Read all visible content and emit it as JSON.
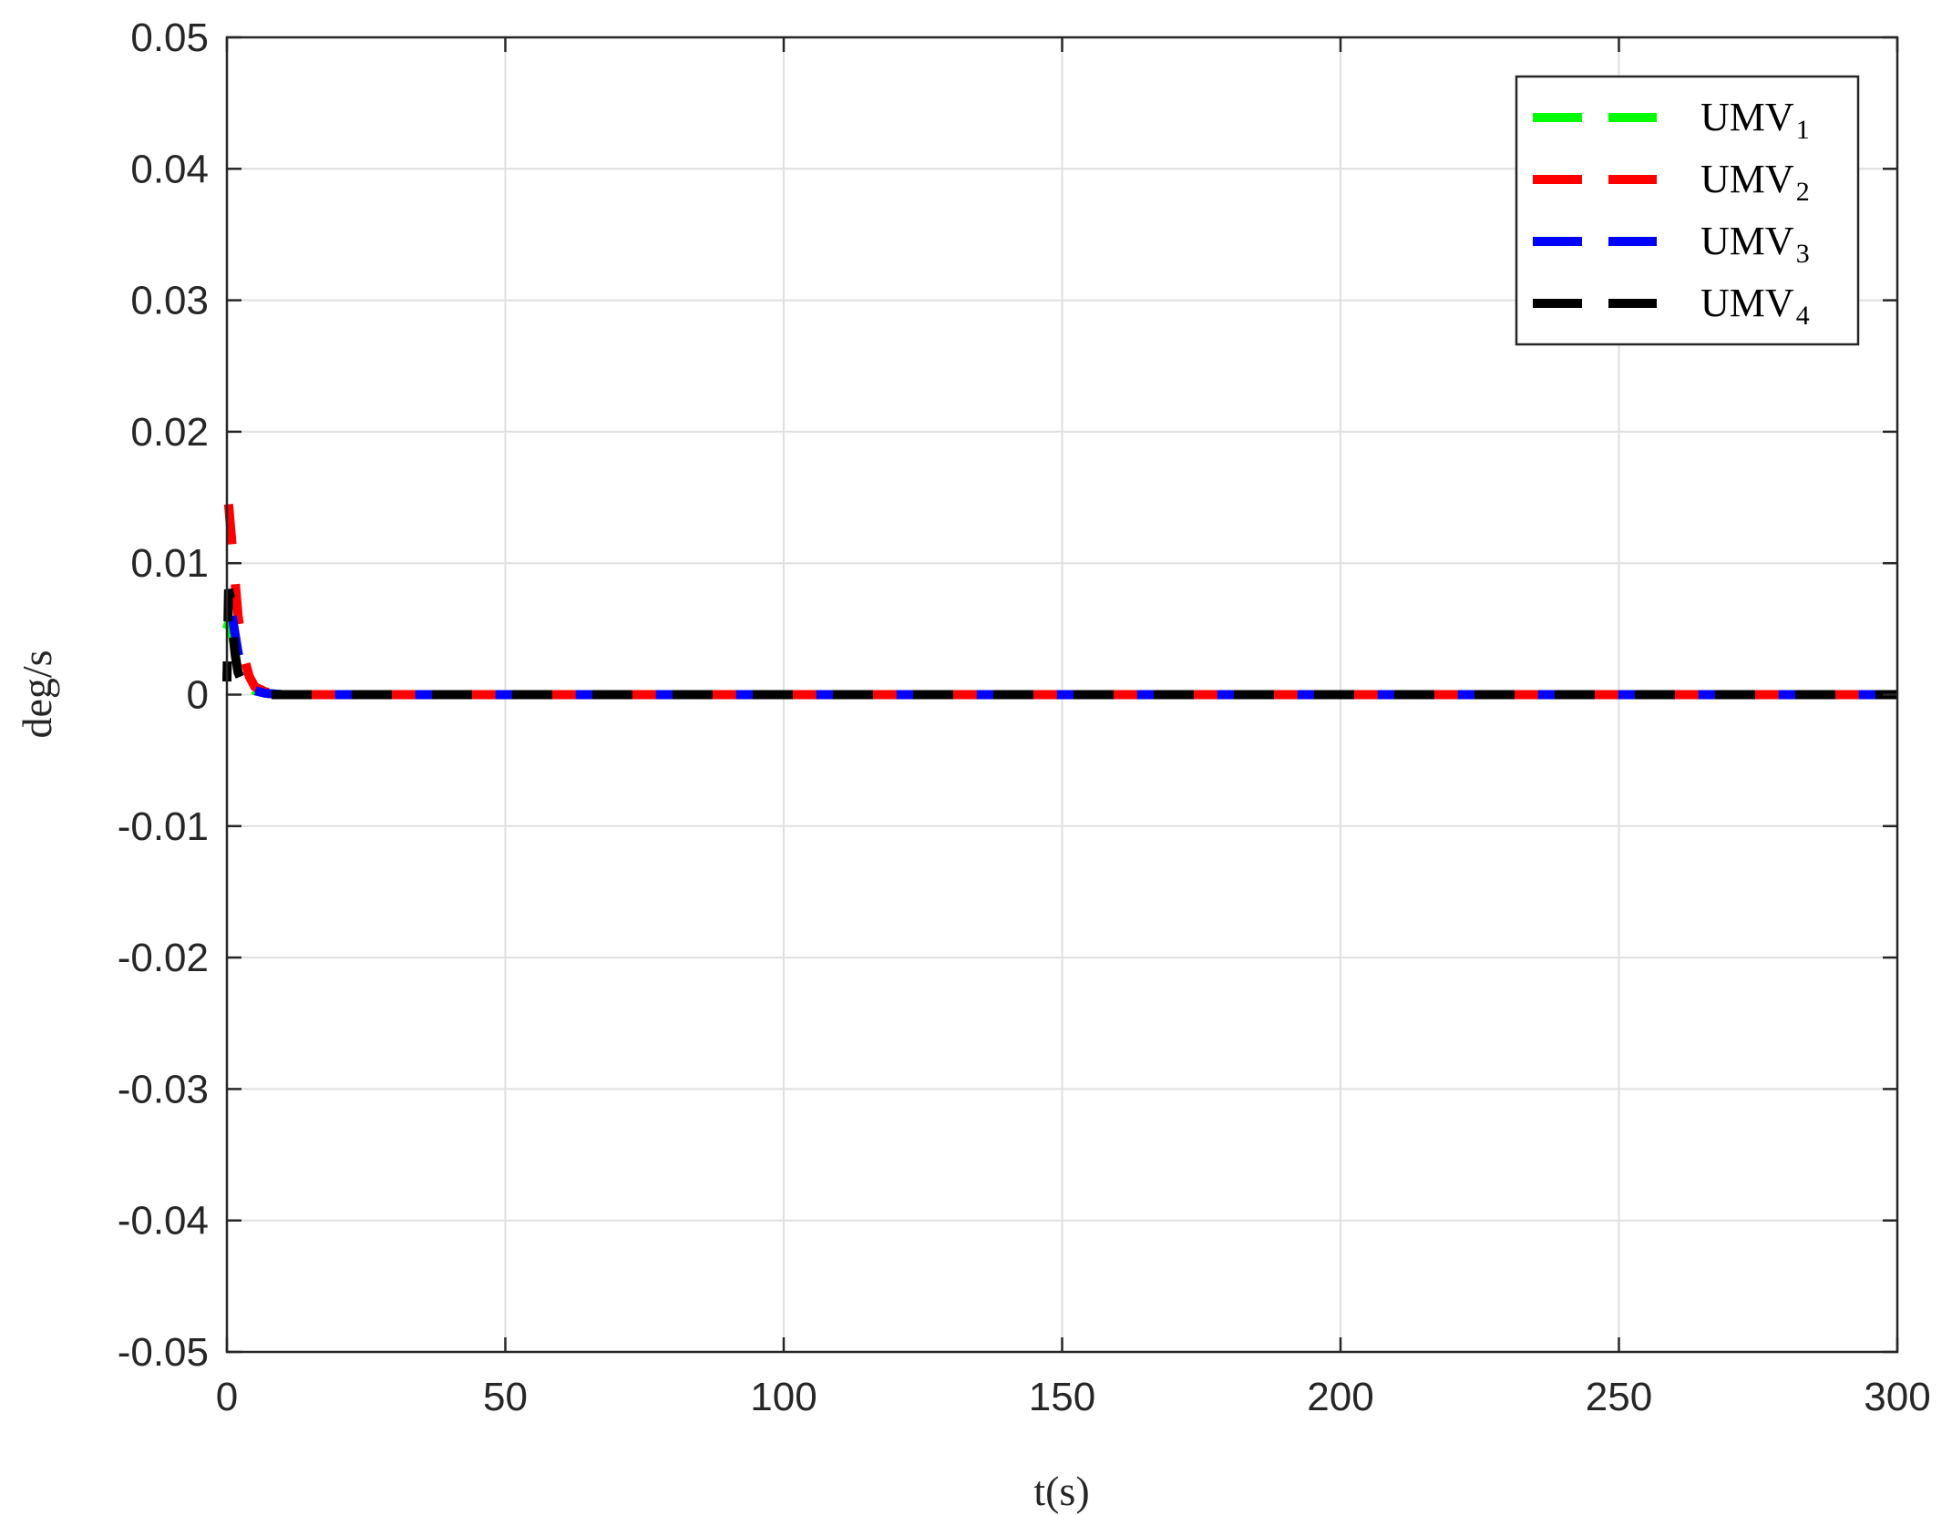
{
  "chart_data": {
    "type": "line",
    "title": "",
    "xlabel": "t(s)",
    "ylabel": "deg/s",
    "xlim": [
      0,
      300
    ],
    "ylim": [
      -0.05,
      0.05
    ],
    "xticks": [
      0,
      50,
      100,
      150,
      200,
      250,
      300
    ],
    "xtick_labels": [
      "0",
      "50",
      "100",
      "150",
      "200",
      "250",
      "300"
    ],
    "yticks": [
      0.05,
      0.04,
      0.03,
      0.02,
      0.01,
      0,
      -0.01,
      -0.02,
      -0.03,
      -0.04,
      -0.05
    ],
    "ytick_labels": [
      "0.05",
      "0.04",
      "0.03",
      "0.02",
      "0.01",
      "0",
      "-0.01",
      "-0.02",
      "-0.03",
      "-0.04",
      "-0.05"
    ],
    "grid": true,
    "legend_position": "top-right",
    "line_style": "dashed",
    "series": [
      {
        "name": "UMV",
        "subscript": "1",
        "color": "#00ff00",
        "x": [
          0,
          0.3,
          0.6,
          1,
          1.5,
          2,
          3,
          4,
          5,
          7,
          10,
          20,
          50,
          100,
          150,
          200,
          250,
          300
        ],
        "y": [
          0.005,
          0.0055,
          0.005,
          0.0045,
          0.0035,
          0.0025,
          0.0014,
          0.0007,
          0.0003,
          0.0001,
          0,
          0,
          0,
          0,
          0,
          0,
          0,
          0
        ]
      },
      {
        "name": "UMV",
        "subscript": "2",
        "color": "#ff0000",
        "x": [
          0,
          0.3,
          0.6,
          1,
          1.5,
          2,
          3,
          4,
          5,
          7,
          10,
          20,
          50,
          100,
          150,
          200,
          250,
          300
        ],
        "y": [
          0.013,
          0.0145,
          0.013,
          0.011,
          0.0085,
          0.006,
          0.003,
          0.0014,
          0.0006,
          0.0002,
          0,
          0,
          0,
          0,
          0,
          0,
          0,
          0
        ]
      },
      {
        "name": "UMV",
        "subscript": "3",
        "color": "#0000ff",
        "x": [
          0,
          0.3,
          0.6,
          1,
          1.5,
          2,
          3,
          4,
          5,
          7,
          10,
          20,
          50,
          100,
          150,
          200,
          250,
          300
        ],
        "y": [
          0.006,
          0.0075,
          0.007,
          0.0058,
          0.0045,
          0.0032,
          0.0015,
          0.0007,
          0.0003,
          0.0001,
          0,
          0,
          0,
          0,
          0,
          0,
          0,
          0
        ]
      },
      {
        "name": "UMV",
        "subscript": "4",
        "color": "#000000",
        "x": [
          0,
          0.3,
          0.6,
          1,
          1.5,
          2,
          3,
          4,
          5,
          7,
          10,
          20,
          50,
          100,
          150,
          200,
          250,
          300
        ],
        "y": [
          0.001,
          0.008,
          0.0075,
          0.005,
          0.003,
          0.0017,
          0.0007,
          0.0003,
          0.0001,
          0,
          0,
          0,
          0,
          0,
          0,
          0,
          0,
          0
        ]
      }
    ]
  }
}
